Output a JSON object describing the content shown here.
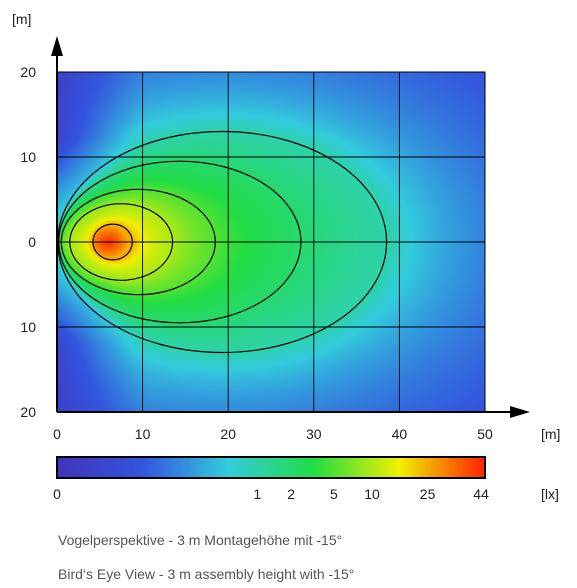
{
  "chart_data": {
    "type": "heatmap",
    "title": "",
    "x_unit": "[m]",
    "y_unit": "[m]",
    "xlim": [
      0,
      50
    ],
    "ylim": [
      -20,
      20
    ],
    "x_ticks": [
      {
        "value": 0,
        "label": "0"
      },
      {
        "value": 10,
        "label": "10"
      },
      {
        "value": 20,
        "label": "20"
      },
      {
        "value": 30,
        "label": "30"
      },
      {
        "value": 40,
        "label": "40"
      },
      {
        "value": 50,
        "label": "50"
      }
    ],
    "y_ticks": [
      {
        "value": 20,
        "label": "20"
      },
      {
        "value": 10,
        "label": "10"
      },
      {
        "value": 0,
        "label": "0"
      },
      {
        "value": -10,
        "label": "10"
      },
      {
        "value": -20,
        "label": "20"
      }
    ],
    "grid": true,
    "peak": {
      "x": 6,
      "y": 0,
      "value": 44
    },
    "isolux_contours": [
      {
        "value": 25,
        "x_near": 4.2,
        "x_far": 8.8,
        "half_width": 2.1
      },
      {
        "value": 10,
        "x_near": 1.5,
        "x_far": 13.5,
        "half_width": 4.5
      },
      {
        "value": 5,
        "x_near": 0.5,
        "x_far": 18.5,
        "half_width": 6.2
      },
      {
        "value": 2,
        "x_near": 0.2,
        "x_far": 28.5,
        "half_width": 9.5
      },
      {
        "value": 1,
        "x_near": 0.1,
        "x_far": 38.5,
        "half_width": 13
      }
    ],
    "colorbar": {
      "unit": "[lx]",
      "range": [
        0,
        44
      ],
      "ticks": [
        {
          "value": 0,
          "label": "0"
        },
        {
          "value": 1,
          "label": "1"
        },
        {
          "value": 2,
          "label": "2"
        },
        {
          "value": 5,
          "label": "5"
        },
        {
          "value": 10,
          "label": "10"
        },
        {
          "value": 25,
          "label": "25"
        },
        {
          "value": 44,
          "label": "44"
        }
      ],
      "colors": [
        "#4433bb",
        "#3355dd",
        "#33ccdd",
        "#22dd44",
        "#f0f000",
        "#ff2200"
      ]
    }
  },
  "captions": {
    "de": "Vogelperspektive - 3 m Montagehöhe mit -15°",
    "en": "Bird‘s Eye View - 3 m assembly height with -15°"
  }
}
